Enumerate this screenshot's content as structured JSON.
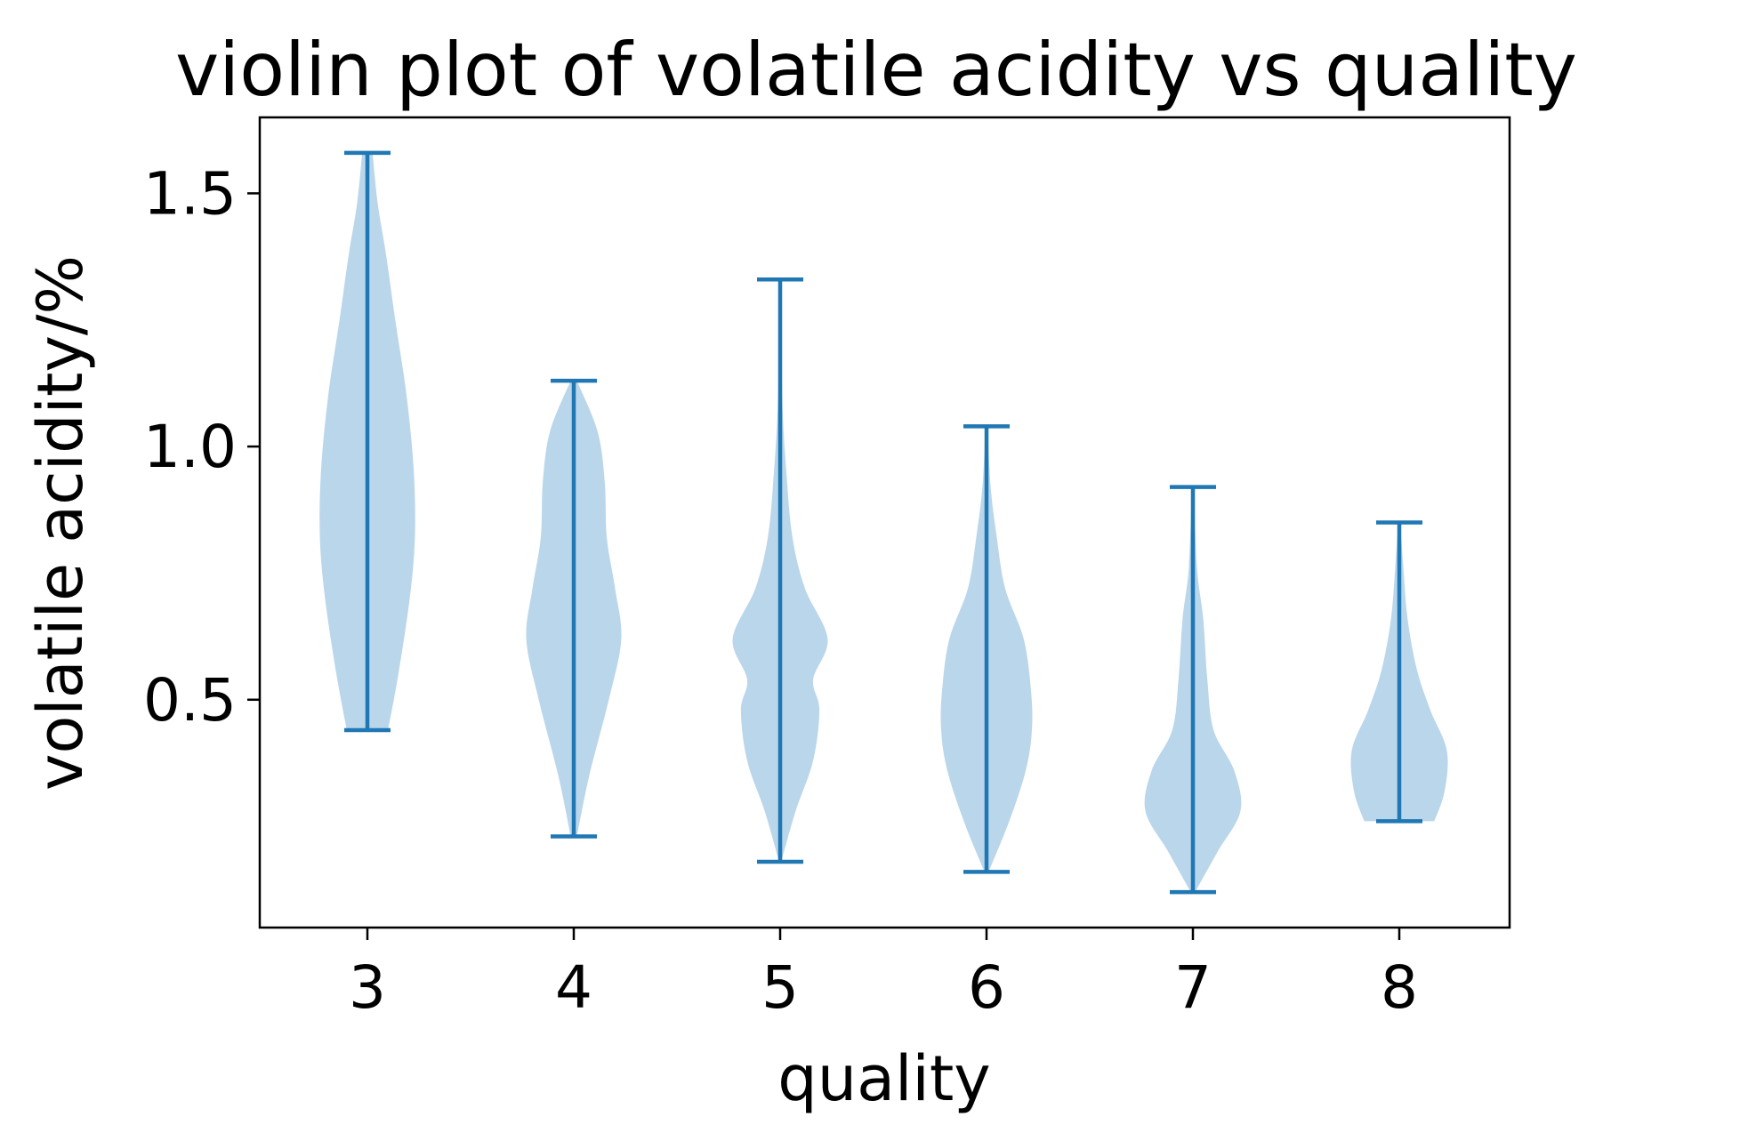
{
  "chart_data": {
    "type": "violin",
    "title": "violin plot of volatile acidity vs quality",
    "xlabel": "quality",
    "ylabel": "volatile acidity/%",
    "categories": [
      "3",
      "4",
      "5",
      "6",
      "7",
      "8"
    ],
    "yticks": [
      {
        "value": 0.5,
        "label": "0.5"
      },
      {
        "value": 1.0,
        "label": "1.0"
      },
      {
        "value": 1.5,
        "label": "1.5"
      }
    ],
    "ylim": [
      0.05,
      1.65
    ],
    "grid": false,
    "legend": "none",
    "colors": {
      "stroke": "#1f77b4",
      "fill": "#bad6ea",
      "axis": "#000000"
    },
    "violins": [
      {
        "category": "3",
        "min": 0.44,
        "max": 1.58,
        "density": [
          [
            0.44,
            0.2
          ],
          [
            0.55,
            0.3
          ],
          [
            0.7,
            0.41
          ],
          [
            0.82,
            0.46
          ],
          [
            0.95,
            0.45
          ],
          [
            1.1,
            0.38
          ],
          [
            1.25,
            0.27
          ],
          [
            1.38,
            0.18
          ],
          [
            1.48,
            0.1
          ],
          [
            1.58,
            0.05
          ]
        ]
      },
      {
        "category": "4",
        "min": 0.23,
        "max": 1.13,
        "density": [
          [
            0.23,
            0.03
          ],
          [
            0.35,
            0.15
          ],
          [
            0.5,
            0.34
          ],
          [
            0.62,
            0.46
          ],
          [
            0.72,
            0.4
          ],
          [
            0.82,
            0.32
          ],
          [
            0.93,
            0.3
          ],
          [
            1.03,
            0.23
          ],
          [
            1.13,
            0.03
          ]
        ]
      },
      {
        "category": "5",
        "min": 0.18,
        "max": 1.33,
        "density": [
          [
            0.18,
            0.01
          ],
          [
            0.28,
            0.15
          ],
          [
            0.38,
            0.32
          ],
          [
            0.48,
            0.38
          ],
          [
            0.54,
            0.32
          ],
          [
            0.62,
            0.46
          ],
          [
            0.72,
            0.24
          ],
          [
            0.82,
            0.12
          ],
          [
            0.95,
            0.06
          ],
          [
            1.1,
            0.02
          ],
          [
            1.33,
            0.01
          ]
        ]
      },
      {
        "category": "6",
        "min": 0.16,
        "max": 1.04,
        "density": [
          [
            0.16,
            0.02
          ],
          [
            0.26,
            0.22
          ],
          [
            0.36,
            0.38
          ],
          [
            0.44,
            0.44
          ],
          [
            0.52,
            0.43
          ],
          [
            0.62,
            0.36
          ],
          [
            0.72,
            0.18
          ],
          [
            0.82,
            0.1
          ],
          [
            0.92,
            0.04
          ],
          [
            1.04,
            0.01
          ]
        ]
      },
      {
        "category": "7",
        "min": 0.12,
        "max": 0.92,
        "density": [
          [
            0.12,
            0.02
          ],
          [
            0.2,
            0.24
          ],
          [
            0.28,
            0.46
          ],
          [
            0.36,
            0.4
          ],
          [
            0.44,
            0.2
          ],
          [
            0.54,
            0.14
          ],
          [
            0.66,
            0.1
          ],
          [
            0.76,
            0.04
          ],
          [
            0.92,
            0.01
          ]
        ]
      },
      {
        "category": "8",
        "min": 0.26,
        "max": 0.85,
        "density": [
          [
            0.26,
            0.34
          ],
          [
            0.32,
            0.44
          ],
          [
            0.4,
            0.46
          ],
          [
            0.48,
            0.3
          ],
          [
            0.56,
            0.17
          ],
          [
            0.66,
            0.08
          ],
          [
            0.76,
            0.04
          ],
          [
            0.85,
            0.01
          ]
        ]
      }
    ]
  }
}
